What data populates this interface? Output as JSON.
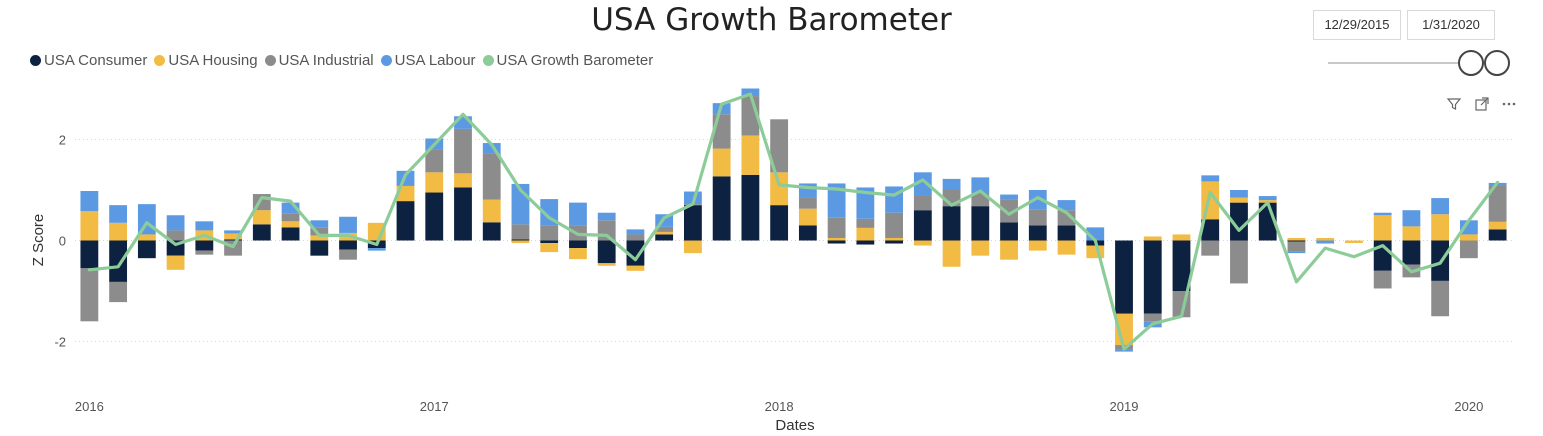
{
  "header": {
    "title": "USA Growth Barometer"
  },
  "date_range": {
    "start": "12/29/2015",
    "end": "1/31/2020"
  },
  "toolbar": {
    "icons": [
      "filter-icon",
      "focus-mode-icon",
      "more-options-icon"
    ]
  },
  "chart_data": {
    "type": "bar",
    "stacked": true,
    "title": "USA Growth Barometer",
    "xlabel": "Dates",
    "ylabel": "Z Score",
    "ylim": [
      -2.8,
      3.0
    ],
    "y_ticks": [
      2,
      0,
      -2
    ],
    "grid": true,
    "legend_position": "top-left",
    "x_tick_labels": [
      {
        "label": "2016",
        "index": 0
      },
      {
        "label": "2017",
        "index": 12
      },
      {
        "label": "2018",
        "index": 24
      },
      {
        "label": "2019",
        "index": 36
      },
      {
        "label": "2020",
        "index": 48
      }
    ],
    "categories": [
      "Jan 2016",
      "Feb 2016",
      "Mar 2016",
      "Apr 2016",
      "May 2016",
      "Jun 2016",
      "Jul 2016",
      "Aug 2016",
      "Sep 2016",
      "Oct 2016",
      "Nov 2016",
      "Dec 2016",
      "Jan 2017",
      "Feb 2017",
      "Mar 2017",
      "Apr 2017",
      "May 2017",
      "Jun 2017",
      "Jul 2017",
      "Aug 2017",
      "Sep 2017",
      "Oct 2017",
      "Nov 2017",
      "Dec 2017",
      "Jan 2018",
      "Feb 2018",
      "Mar 2018",
      "Apr 2018",
      "May 2018",
      "Jun 2018",
      "Jul 2018",
      "Aug 2018",
      "Sep 2018",
      "Oct 2018",
      "Nov 2018",
      "Dec 2018",
      "Jan 2019",
      "Feb 2019",
      "Mar 2019",
      "Apr 2019",
      "May 2019",
      "Jun 2019",
      "Jul 2019",
      "Aug 2019",
      "Sep 2019",
      "Oct 2019",
      "Nov 2019",
      "Dec 2019",
      "Jan 2020",
      "Feb 2020"
    ],
    "series": [
      {
        "name": "USA Consumer",
        "color": "#0d2140",
        "values": [
          -0.55,
          -0.82,
          -0.35,
          -0.3,
          -0.2,
          0.02,
          0.32,
          0.26,
          -0.3,
          -0.18,
          -0.15,
          0.78,
          0.95,
          1.05,
          0.36,
          0.02,
          -0.05,
          -0.15,
          -0.45,
          -0.5,
          0.12,
          0.7,
          1.27,
          1.3,
          0.7,
          0.3,
          -0.06,
          -0.08,
          -0.06,
          0.6,
          0.68,
          0.68,
          0.36,
          0.3,
          0.3,
          -0.1,
          -1.45,
          -1.45,
          -1.0,
          0.42,
          0.75,
          0.75,
          -0.02,
          0.0,
          0.0,
          -0.6,
          -0.48,
          -0.8,
          0.0,
          0.22
        ]
      },
      {
        "name": "USA Housing",
        "color": "#f2bb44",
        "values": [
          0.58,
          0.35,
          0.12,
          -0.28,
          0.2,
          0.12,
          0.28,
          0.12,
          0.1,
          0.15,
          0.35,
          0.3,
          0.4,
          0.28,
          0.45,
          -0.05,
          -0.18,
          -0.22,
          -0.05,
          -0.1,
          0.05,
          -0.25,
          0.55,
          0.78,
          0.65,
          0.33,
          0.05,
          0.25,
          0.05,
          -0.1,
          -0.52,
          -0.3,
          -0.38,
          -0.2,
          -0.28,
          -0.25,
          -0.62,
          0.08,
          0.12,
          0.75,
          0.1,
          0.05,
          0.05,
          0.05,
          -0.05,
          0.5,
          0.28,
          0.52,
          0.12,
          0.15
        ]
      },
      {
        "name": "USA Industrial",
        "color": "#8c8c8c",
        "values": [
          -1.05,
          -0.4,
          0.0,
          0.2,
          -0.08,
          -0.3,
          0.32,
          0.15,
          0.15,
          -0.2,
          0.0,
          0.0,
          0.45,
          0.88,
          0.92,
          0.3,
          0.3,
          0.3,
          0.4,
          0.12,
          0.1,
          0.02,
          0.68,
          0.78,
          1.05,
          0.22,
          0.4,
          0.18,
          0.5,
          0.3,
          0.32,
          0.25,
          0.45,
          0.32,
          0.3,
          0.0,
          -0.08,
          -0.15,
          -0.52,
          -0.3,
          -0.85,
          0.0,
          -0.2,
          0.0,
          0.0,
          -0.35,
          -0.25,
          -0.7,
          -0.35,
          0.72
        ]
      },
      {
        "name": "USA Labour",
        "color": "#5b9ae3",
        "values": [
          0.4,
          0.35,
          0.6,
          0.3,
          0.18,
          0.06,
          0.0,
          0.22,
          0.15,
          0.32,
          -0.05,
          0.3,
          0.22,
          0.25,
          0.2,
          0.8,
          0.52,
          0.45,
          0.15,
          0.1,
          0.25,
          0.25,
          0.22,
          0.15,
          0.0,
          0.28,
          0.68,
          0.62,
          0.52,
          0.45,
          0.22,
          0.32,
          0.1,
          0.38,
          0.2,
          0.26,
          -0.05,
          -0.12,
          0.0,
          0.12,
          0.15,
          0.08,
          -0.03,
          -0.06,
          0.0,
          0.05,
          0.32,
          0.32,
          0.28,
          0.05
        ]
      }
    ],
    "line": {
      "name": "USA Growth Barometer",
      "color": "#8ccc99",
      "values": [
        -0.58,
        -0.52,
        0.35,
        -0.08,
        0.1,
        -0.12,
        0.85,
        0.78,
        0.1,
        0.1,
        -0.08,
        1.3,
        1.9,
        2.5,
        1.9,
        1.0,
        0.45,
        0.12,
        0.1,
        -0.38,
        0.45,
        0.72,
        2.7,
        2.9,
        1.1,
        1.05,
        1.02,
        0.95,
        0.9,
        1.2,
        0.7,
        0.98,
        0.52,
        0.85,
        0.55,
        0.0,
        -2.15,
        -1.65,
        -1.5,
        0.95,
        0.2,
        0.75,
        -0.82,
        -0.15,
        -0.32,
        -0.1,
        -0.62,
        -0.45,
        0.4,
        1.15
      ]
    }
  }
}
